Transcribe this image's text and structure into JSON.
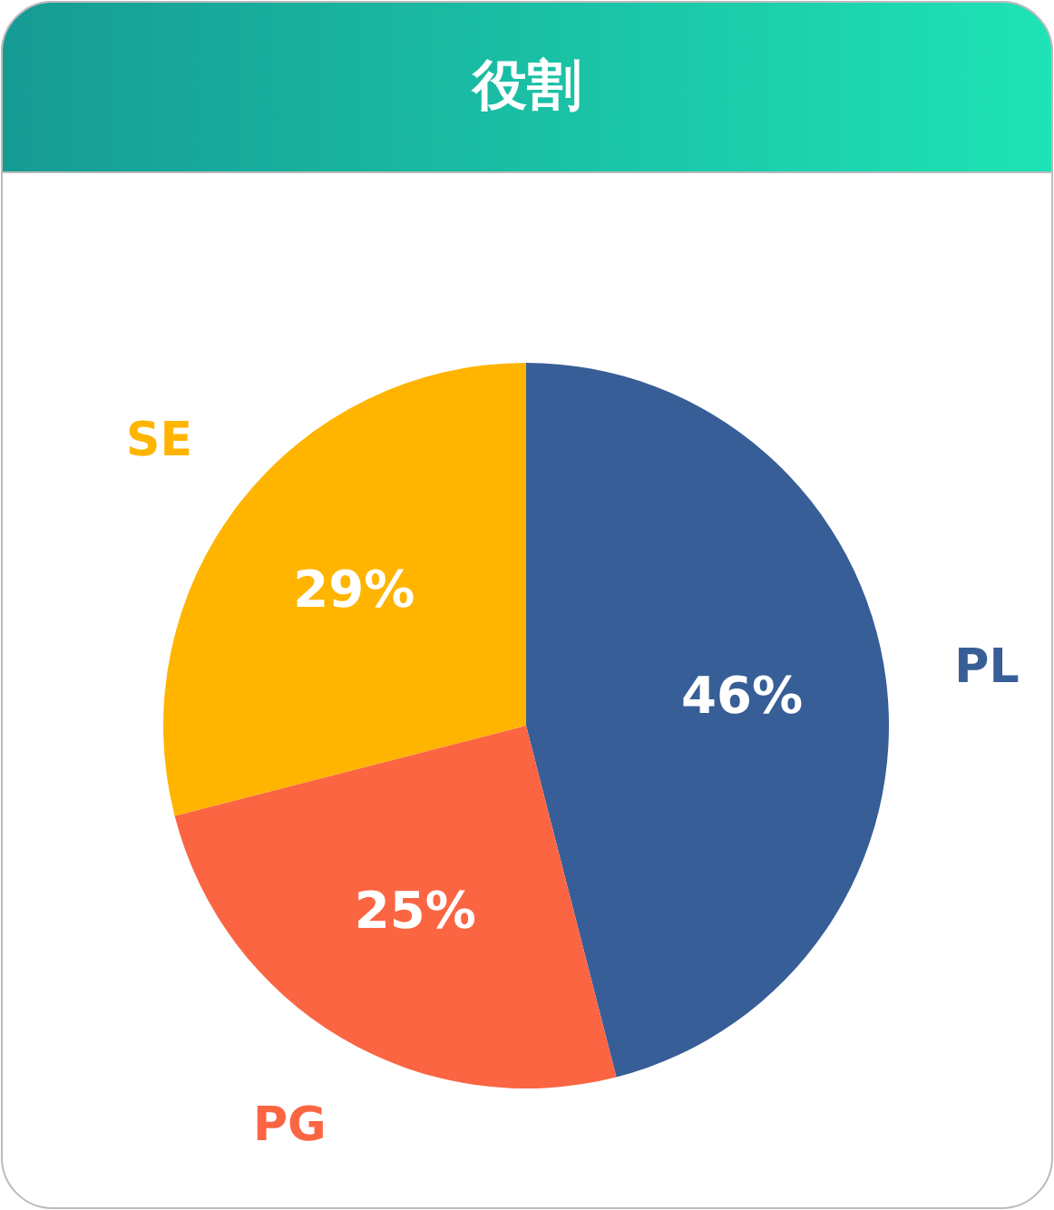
{
  "chart_data": {
    "type": "pie",
    "title": "役割",
    "categories": [
      "PL",
      "PG",
      "SE"
    ],
    "values": [
      46,
      25,
      29
    ],
    "colors": [
      "#375e97",
      "#fb6542",
      "#ffb400"
    ],
    "value_labels": [
      "46%",
      "25%",
      "29%"
    ]
  }
}
